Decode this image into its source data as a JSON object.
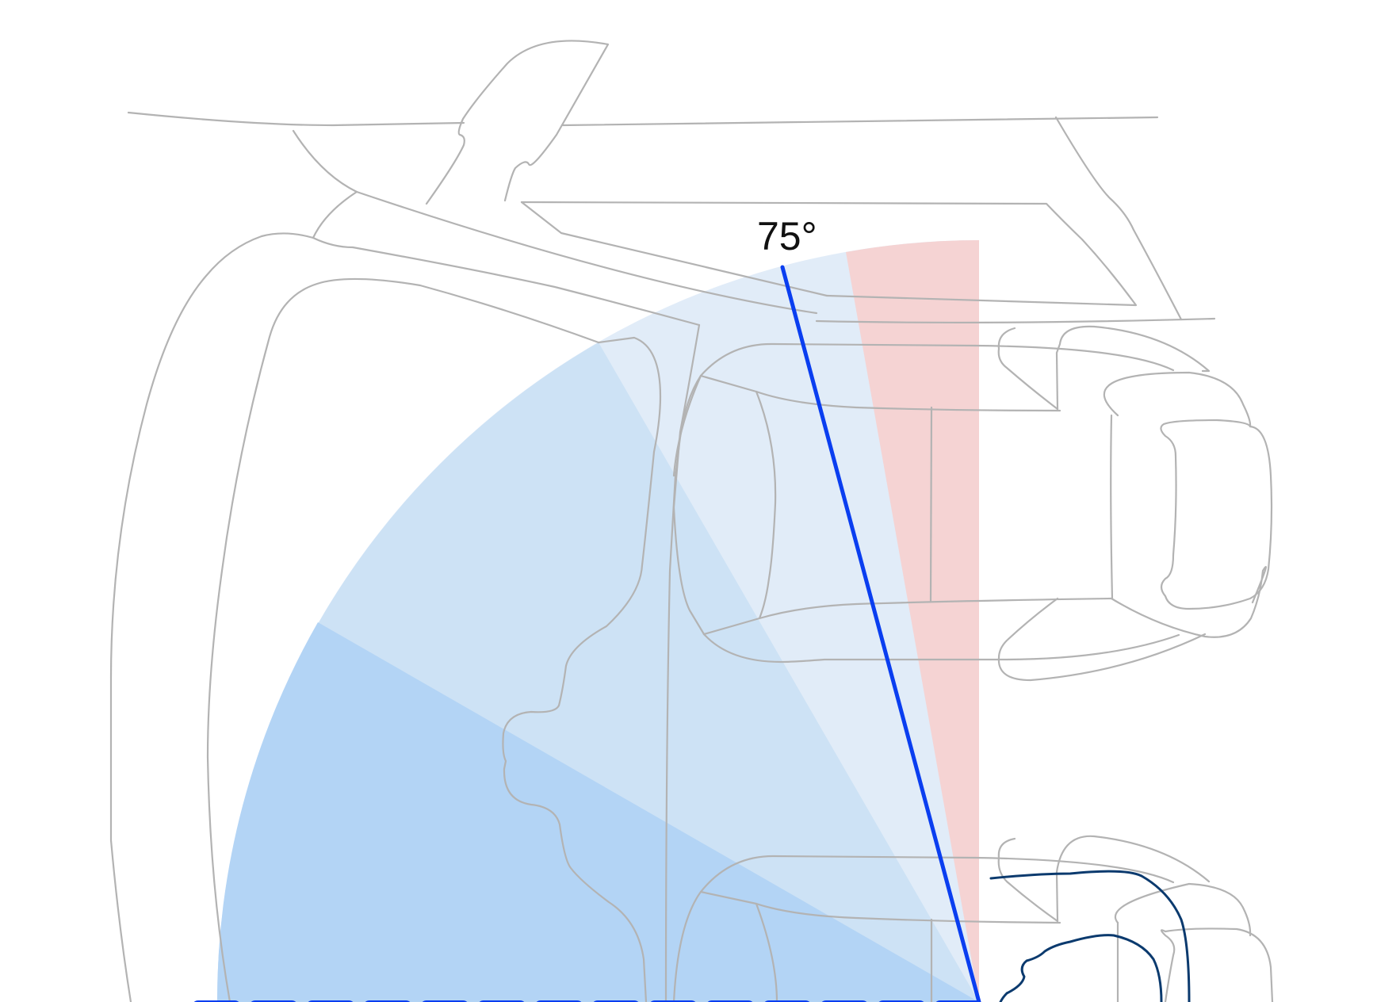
{
  "diagram": {
    "angle_label": "75°",
    "recline_angle_deg": 75,
    "colors": {
      "outer_range": "#e1ecf8",
      "middle_range": "#cde2f5",
      "inner_range": "#b3d4f5",
      "vertical_reference": "#f5d3d3",
      "recline_line": "#0a3ef0",
      "base_dashes": "#0a3ef0",
      "chair_outline": "#b3b3b3",
      "hand_outline": "#0b3a6e"
    },
    "icons": {
      "chair": "reclining-chair-outline",
      "hand": "hand-on-button-outline"
    }
  }
}
